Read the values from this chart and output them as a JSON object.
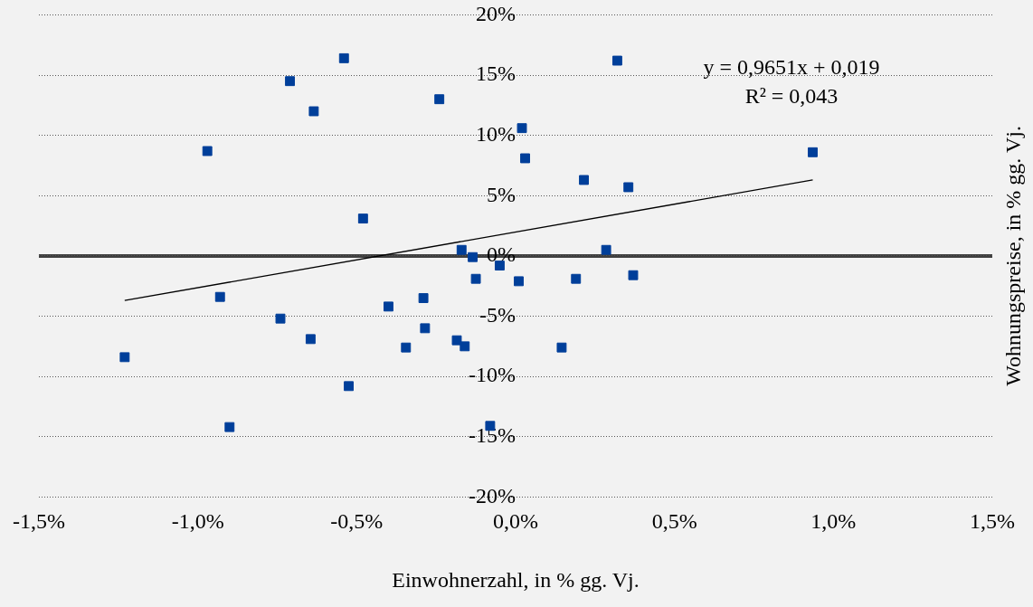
{
  "chart_data": {
    "type": "scatter",
    "xlabel": "Einwohnerzahl, in % gg. Vj.",
    "ylabel": "Wohnungspreise, in % gg. Vj.",
    "xlim": [
      -1.5,
      1.5
    ],
    "xticks": [
      {
        "value": -1.5,
        "label": "-1,5%"
      },
      {
        "value": -1,
        "label": "-1,0%"
      },
      {
        "value": -0.5,
        "label": "-0,5%"
      },
      {
        "value": 0,
        "label": "0,0%"
      },
      {
        "value": 0.5,
        "label": "0,5%"
      },
      {
        "value": 1,
        "label": "1,0%"
      },
      {
        "value": 1.5,
        "label": "1,5%"
      }
    ],
    "ylim": [
      -20,
      20
    ],
    "yticks": [
      {
        "value": -20,
        "label": "-20%"
      },
      {
        "value": -15,
        "label": "-15%"
      },
      {
        "value": -10,
        "label": "-10%"
      },
      {
        "value": -5,
        "label": "-5%"
      },
      {
        "value": 0,
        "label": "0%"
      },
      {
        "value": 5,
        "label": "5%"
      },
      {
        "value": 10,
        "label": "10%"
      },
      {
        "value": 15,
        "label": "15%"
      },
      {
        "value": 20,
        "label": "20%"
      }
    ],
    "grid": "y",
    "legend": false,
    "ref_lines": [
      {
        "axis": "y",
        "value": 0,
        "color": "#404040"
      }
    ],
    "annotations": [
      "y = 0,9651x + 0,019",
      "R² = 0,043"
    ],
    "series": [
      {
        "type": "scatter",
        "marker": "square",
        "color": "#003f9a",
        "x": [
          -0.54,
          -0.71,
          -0.635,
          -0.24,
          0.32,
          0.02,
          0.03,
          -0.97,
          0.215,
          0.355,
          0.935,
          -0.48,
          -0.17,
          -0.135,
          0.285,
          -0.05,
          -0.125,
          0.01,
          0.19,
          0.37,
          -0.93,
          -0.29,
          -0.4,
          -0.74,
          -0.285,
          -0.645,
          -0.185,
          -0.345,
          -0.16,
          0.145,
          -1.23,
          -0.525,
          -0.9,
          -0.08
        ],
        "values": [
          16.4,
          14.5,
          12.0,
          13.0,
          16.2,
          10.6,
          8.1,
          8.7,
          6.3,
          5.7,
          8.6,
          3.1,
          0.5,
          -0.1,
          0.5,
          -0.8,
          -1.9,
          -2.1,
          -1.9,
          -1.6,
          -3.4,
          -3.5,
          -4.2,
          -5.2,
          -6.0,
          -6.9,
          -7.0,
          -7.6,
          -7.5,
          -7.6,
          -8.4,
          -10.8,
          -14.2,
          -14.1
        ]
      },
      {
        "type": "line",
        "marker": "none",
        "color": "#000000",
        "x": [
          -1.23,
          0.935
        ],
        "values": [
          -3.7,
          6.3
        ]
      }
    ]
  }
}
